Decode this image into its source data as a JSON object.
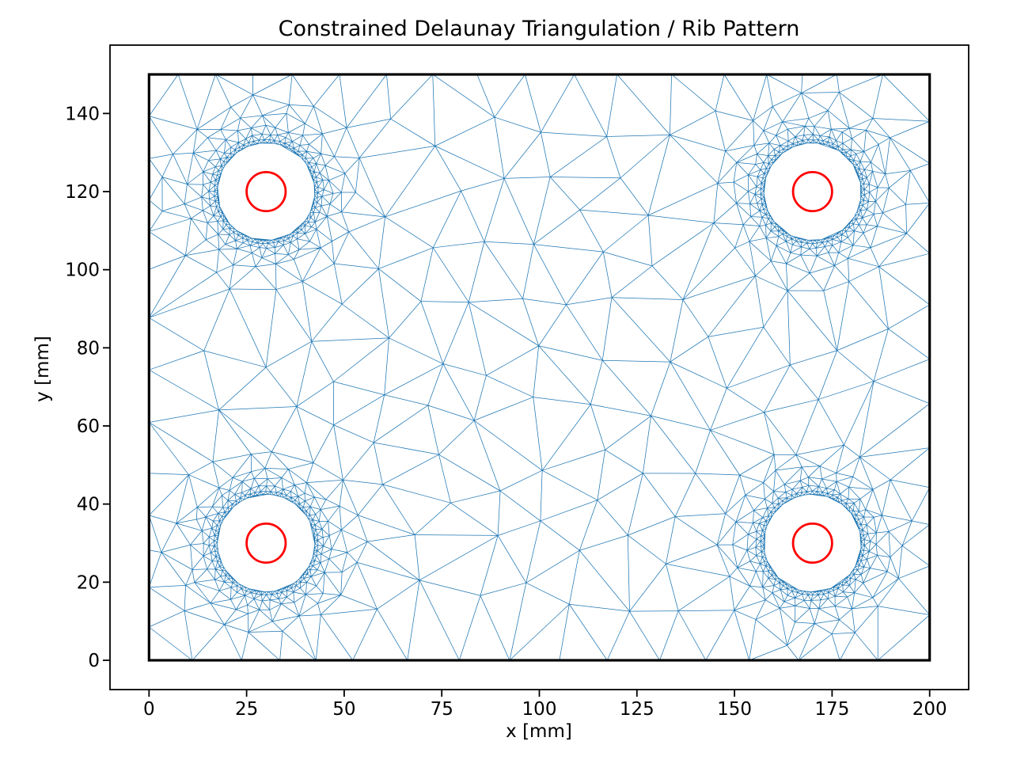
{
  "chart_data": {
    "type": "triangulation-mesh",
    "title": "Constrained Delaunay Triangulation / Rib Pattern",
    "xlabel": "x [mm]",
    "ylabel": "y [mm]",
    "xlim": [
      -10,
      210
    ],
    "ylim": [
      -7.5,
      157.5
    ],
    "xticks": [
      0,
      25,
      50,
      75,
      100,
      125,
      150,
      175,
      200
    ],
    "yticks": [
      0,
      20,
      40,
      60,
      80,
      100,
      120,
      140
    ],
    "grid": false,
    "legend": "none",
    "background": "#ffffff",
    "axis_color": "#000000",
    "domain_rect": {
      "x0": 0,
      "y0": 0,
      "x1": 200,
      "y1": 150,
      "edge_color": "#000000",
      "line_width": 3.2
    },
    "holes": [
      {
        "cx": 30,
        "cy": 120,
        "clearance_radius": 12.5,
        "pilot_radius": 5
      },
      {
        "cx": 170,
        "cy": 120,
        "clearance_radius": 12.5,
        "pilot_radius": 5
      },
      {
        "cx": 30,
        "cy": 30,
        "clearance_radius": 12.5,
        "pilot_radius": 5
      },
      {
        "cx": 170,
        "cy": 30,
        "clearance_radius": 12.5,
        "pilot_radius": 5
      }
    ],
    "pilot_circle": {
      "color": "#ff0000",
      "line_width": 2.8
    },
    "mesh": {
      "line_color": "#1f77b4",
      "line_width": 0.75,
      "min_spacing": 0.85,
      "max_spacing": 15.5,
      "grading": 0.62,
      "ring_extent": 27.5
    }
  }
}
